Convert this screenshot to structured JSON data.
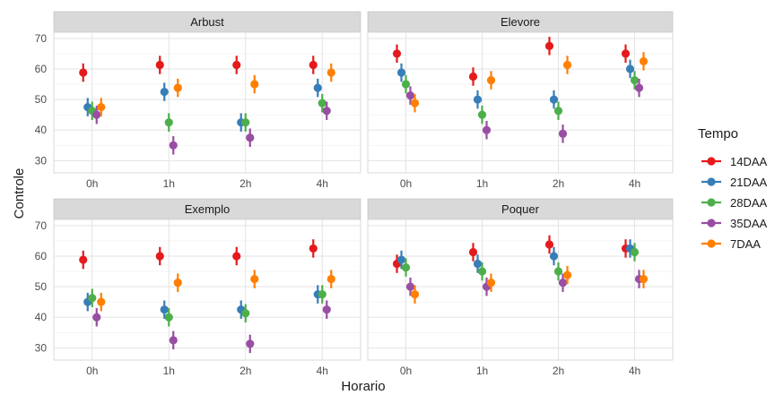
{
  "chart_data": {
    "type": "scatter",
    "xlabel": "Horario",
    "ylabel": "Controle",
    "x_categories": [
      "0h",
      "1h",
      "2h",
      "4h"
    ],
    "ylim": [
      26,
      72
    ],
    "y_ticks": [
      30,
      40,
      50,
      60,
      70
    ],
    "grid": true,
    "legend": {
      "title": "Tempo",
      "position": "right",
      "entries": [
        {
          "name": "14DAA",
          "color": "#E41A1C"
        },
        {
          "name": "21DAA",
          "color": "#377EB8"
        },
        {
          "name": "28DAA",
          "color": "#4DAF4A"
        },
        {
          "name": "35DAA",
          "color": "#984EA3"
        },
        {
          "name": "7DAA",
          "color": "#FF7F00"
        }
      ]
    },
    "panels": [
      {
        "title": "Arbust",
        "series": {
          "14DAA": [
            58.8,
            61.3,
            61.3,
            61.3
          ],
          "21DAA": [
            47.5,
            52.5,
            42.5,
            53.8
          ],
          "28DAA": [
            46.3,
            42.5,
            42.5,
            48.8
          ],
          "35DAA": [
            45.0,
            35.0,
            37.5,
            46.3
          ],
          "7DAA": [
            47.5,
            53.8,
            55.0,
            58.8
          ]
        }
      },
      {
        "title": "Elevore",
        "series": {
          "14DAA": [
            65.0,
            57.5,
            67.5,
            65.0
          ],
          "21DAA": [
            58.8,
            50.0,
            50.0,
            60.0
          ],
          "28DAA": [
            55.0,
            45.0,
            46.3,
            56.3
          ],
          "35DAA": [
            51.3,
            40.0,
            38.8,
            53.8
          ],
          "7DAA": [
            48.8,
            56.3,
            61.3,
            62.5
          ]
        }
      },
      {
        "title": "Exemplo",
        "series": {
          "14DAA": [
            58.8,
            60.0,
            60.0,
            62.5
          ],
          "21DAA": [
            45.0,
            42.5,
            42.5,
            47.5
          ],
          "28DAA": [
            46.3,
            40.0,
            41.3,
            47.5
          ],
          "35DAA": [
            40.0,
            32.5,
            31.3,
            42.5
          ],
          "7DAA": [
            45.0,
            51.3,
            52.5,
            52.5
          ]
        }
      },
      {
        "title": "Poquer",
        "series": {
          "14DAA": [
            57.5,
            61.3,
            63.8,
            62.5
          ],
          "21DAA": [
            58.8,
            57.5,
            60.0,
            62.5
          ],
          "28DAA": [
            56.3,
            55.0,
            55.0,
            61.3
          ],
          "35DAA": [
            50.0,
            50.0,
            51.3,
            52.5
          ],
          "7DAA": [
            47.5,
            51.3,
            53.8,
            52.5
          ]
        }
      }
    ]
  }
}
